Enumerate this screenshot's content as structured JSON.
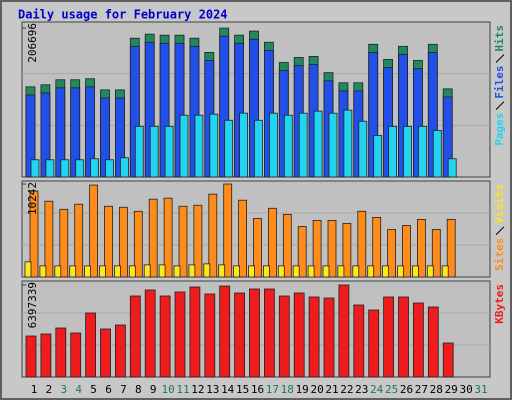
{
  "chart_data": [
    {
      "type": "bar",
      "title": "Daily usage for February 2024",
      "categories": [
        "1",
        "2",
        "3",
        "4",
        "5",
        "6",
        "7",
        "8",
        "9",
        "10",
        "11",
        "12",
        "13",
        "14",
        "15",
        "16",
        "17",
        "18",
        "19",
        "20",
        "21",
        "22",
        "23",
        "24",
        "25",
        "26",
        "27",
        "28",
        "29",
        "30",
        "31"
      ],
      "series": [
        {
          "name": "Pages",
          "color": "#22d4f0",
          "values": [
            23902,
            23902,
            23902,
            23902,
            25308,
            23902,
            26714,
            70300,
            70300,
            70300,
            85766,
            85766,
            87172,
            78736,
            88578,
            78736,
            88578,
            85766,
            88578,
            91390,
            88578,
            92796,
            77330,
            57646,
            70300,
            70300,
            70300,
            64676,
            25308,
            null,
            null
          ]
        },
        {
          "name": "Files",
          "color": "#2050e8",
          "values": [
            113893,
            116708,
            123739,
            123739,
            125144,
            109677,
            109677,
            181392,
            187016,
            185610,
            185610,
            181392,
            161705,
            195453,
            185610,
            191234,
            175763,
            147640,
            154671,
            156077,
            133580,
            119519,
            119519,
            172952,
            151859,
            170142,
            150453,
            172952,
            111082,
            null,
            null
          ]
        },
        {
          "name": "Hits",
          "color": "#208a5c",
          "values": [
            125134,
            127950,
            134980,
            134980,
            136386,
            120920,
            120920,
            192630,
            198257,
            196844,
            196844,
            192630,
            172940,
            206696,
            196844,
            202478,
            187007,
            158890,
            165917,
            167321,
            144823,
            130766,
            130766,
            184194,
            163108,
            181381,
            161702,
            184194,
            122327,
            null,
            null
          ]
        }
      ],
      "ylim": [
        0,
        215133
      ],
      "yticks": [
        206696
      ]
    },
    {
      "type": "bar",
      "categories": [
        "1",
        "2",
        "3",
        "4",
        "5",
        "6",
        "7",
        "8",
        "9",
        "10",
        "11",
        "12",
        "13",
        "14",
        "15",
        "16",
        "17",
        "18",
        "19",
        "20",
        "21",
        "22",
        "23",
        "24",
        "25",
        "26",
        "27",
        "28",
        "29",
        "30",
        "31"
      ],
      "series": [
        {
          "name": "Sites",
          "color": "#ff8c1a",
          "values": [
            9463,
            8350,
            7459,
            8016,
            10131,
            7793,
            7682,
            7236,
            8572,
            8684,
            7793,
            7904,
            9129,
            10242,
            8461,
            6457,
            7570,
            6902,
            5567,
            6234,
            6234,
            5900,
            7236,
            6568,
            5233,
            5678,
            6346,
            5233,
            6346,
            null,
            null
          ]
        },
        {
          "name": "Visits",
          "color": "#ffe81a",
          "values": [
            1670,
            1225,
            1225,
            1225,
            1225,
            1225,
            1225,
            1225,
            1336,
            1336,
            1225,
            1336,
            1447,
            1336,
            1225,
            1225,
            1225,
            1225,
            1225,
            1225,
            1225,
            1225,
            1225,
            1225,
            1225,
            1225,
            1225,
            1225,
            1225,
            null,
            null
          ]
        }
      ],
      "ylim": [
        0,
        10576
      ],
      "yticks": [
        10242
      ]
    },
    {
      "type": "bar",
      "categories": [
        "1",
        "2",
        "3",
        "4",
        "5",
        "6",
        "7",
        "8",
        "9",
        "10",
        "11",
        "12",
        "13",
        "14",
        "15",
        "16",
        "17",
        "18",
        "19",
        "20",
        "21",
        "22",
        "23",
        "24",
        "25",
        "26",
        "27",
        "28",
        "29",
        "30",
        "31"
      ],
      "category_colors": [
        "#000000",
        "#000000",
        "#1a7a5a",
        "#1a7a5a",
        "#000000",
        "#000000",
        "#000000",
        "#000000",
        "#000000",
        "#1a7a5a",
        "#1a7a5a",
        "#000000",
        "#000000",
        "#000000",
        "#000000",
        "#000000",
        "#1a7a5a",
        "#1a7a5a",
        "#000000",
        "#000000",
        "#000000",
        "#000000",
        "#000000",
        "#1a7a5a",
        "#1a7a5a",
        "#000000",
        "#000000",
        "#000000",
        "#000000",
        "#000000",
        "#1a7a5a"
      ],
      "series": [
        {
          "name": "KBytes",
          "color": "#ee1c1c",
          "values": [
            2850976,
            2990048,
            3407264,
            3059584,
            4450304,
            3337728,
            3615872,
            5632416,
            6049632,
            5632416,
            5910560,
            6258240,
            5771488,
            6327776,
            5841024,
            6119168,
            6119168,
            5632416,
            5841024,
            5562880,
            5493344,
            6397339,
            5006592,
            4658912,
            5562880,
            5562880,
            5145664,
            4867520,
            2364224,
            null,
            null
          ]
        }
      ],
      "ylim": [
        0,
        6675484
      ],
      "yticks": [
        6397339
      ]
    }
  ]
}
